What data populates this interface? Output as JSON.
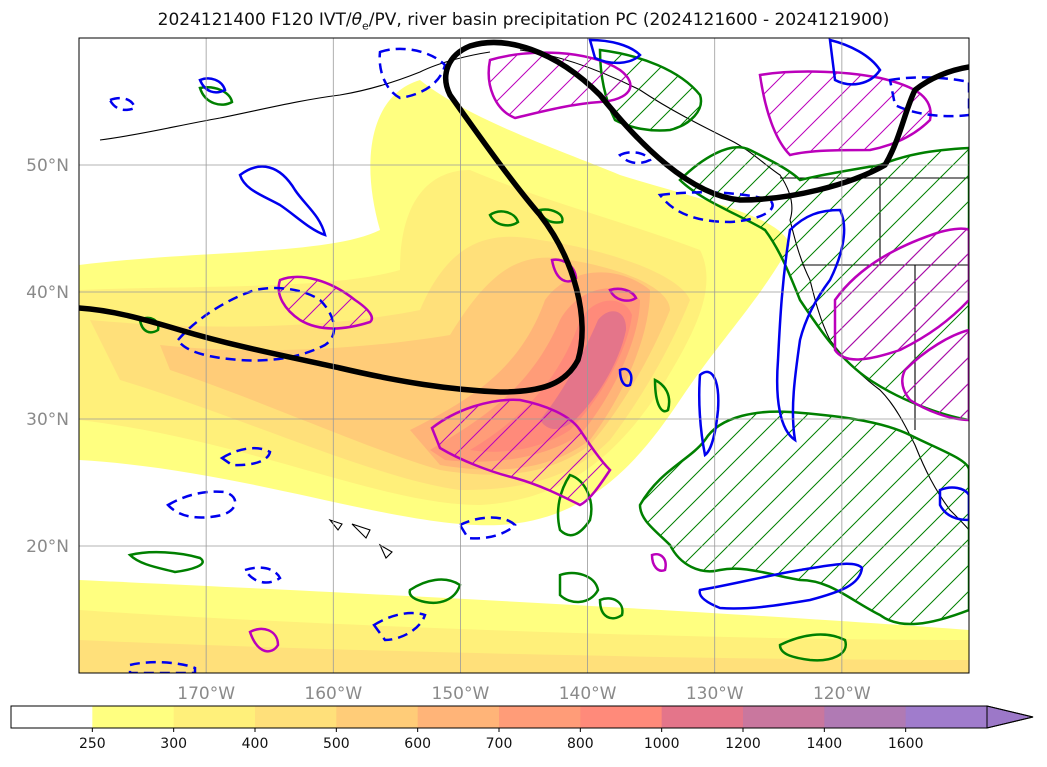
{
  "title": {
    "prefix": "2024121400 F120 IVT/",
    "theta": "θ",
    "theta_sub": "e",
    "suffix": "/PV, river basin precipitation PC (2024121600 - 2024121900)"
  },
  "map": {
    "lon_range": [
      -180,
      -110
    ],
    "lat_range": [
      10,
      60
    ],
    "lon_ticks": [
      {
        "lon": -170,
        "label": "170°W"
      },
      {
        "lon": -160,
        "label": "160°W"
      },
      {
        "lon": -150,
        "label": "150°W"
      },
      {
        "lon": -140,
        "label": "140°W"
      },
      {
        "lon": -130,
        "label": "130°W"
      },
      {
        "lon": -120,
        "label": "120°W"
      }
    ],
    "lat_ticks": [
      {
        "lat": 50,
        "label": "50°N"
      },
      {
        "lat": 40,
        "label": "40°N"
      },
      {
        "lat": 30,
        "label": "30°N"
      },
      {
        "lat": 20,
        "label": "20°N"
      }
    ],
    "grid": true,
    "colors": {
      "theta_e_contour": "#000000",
      "pv_contour": "#0000ee",
      "precip_green": "#008000",
      "precip_magenta": "#bb00bb",
      "coastline": "#000000"
    }
  },
  "colorbar": {
    "levels": [
      250,
      300,
      400,
      500,
      600,
      700,
      800,
      1000,
      1200,
      1400,
      1600
    ],
    "labels": [
      "250",
      "300",
      "400",
      "500",
      "600",
      "700",
      "800",
      "1000",
      "1200",
      "1400",
      "1600"
    ],
    "colors": [
      "#ffffff",
      "#ffff80",
      "#fff07a",
      "#ffe07a",
      "#ffcc78",
      "#ffb478",
      "#ff9c78",
      "#ff8a7a",
      "#e4758a",
      "#c9779e",
      "#b07ab4",
      "#a07ccc"
    ],
    "extend": "max"
  }
}
